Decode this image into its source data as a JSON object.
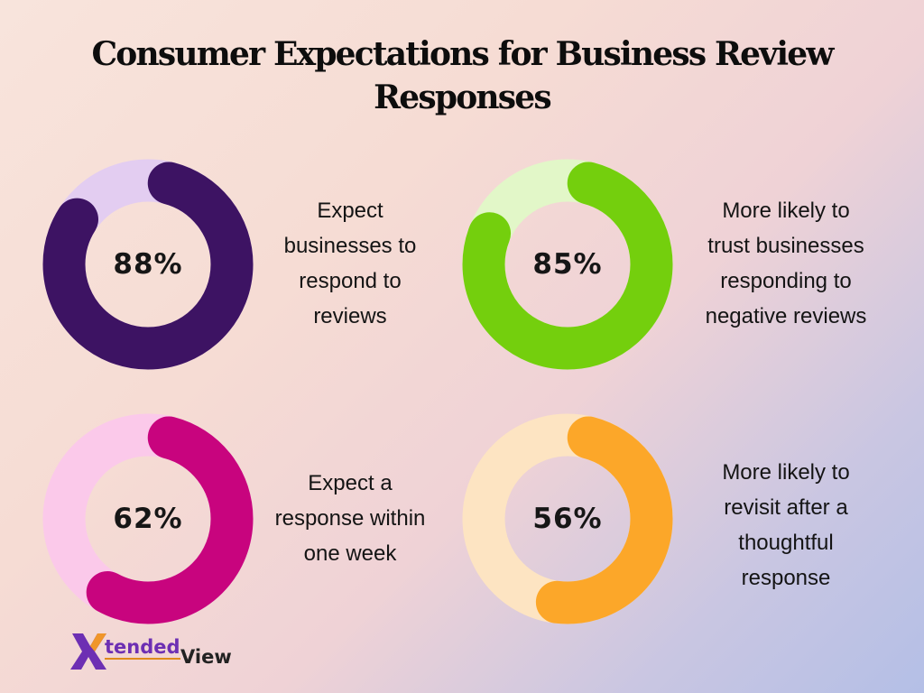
{
  "title_lines": [
    "Consumer Expectations for Business Review",
    "Responses"
  ],
  "logo": {
    "part1": "tended",
    "part2": "View",
    "mark": "X"
  },
  "chart_data": [
    {
      "type": "pie",
      "value": 88,
      "label": "88%",
      "caption_lines": [
        "Expect",
        "businesses to",
        "respond to",
        "reviews"
      ],
      "color": "#3d1363",
      "track_color": "#e3cdf1"
    },
    {
      "type": "pie",
      "value": 85,
      "label": "85%",
      "caption_lines": [
        "More likely to",
        "trust businesses",
        "responding to",
        "negative reviews"
      ],
      "color": "#74cf0d",
      "track_color": "#e2f7c8"
    },
    {
      "type": "pie",
      "value": 62,
      "label": "62%",
      "caption_lines": [
        "Expect a",
        "response within",
        "one week"
      ],
      "color": "#c8047e",
      "track_color": "#fbc9ea"
    },
    {
      "type": "pie",
      "value": 56,
      "label": "56%",
      "caption_lines": [
        "More likely to",
        "revisit after a",
        "thoughtful",
        "response"
      ],
      "color": "#fca729",
      "track_color": "#fde4c2"
    }
  ]
}
